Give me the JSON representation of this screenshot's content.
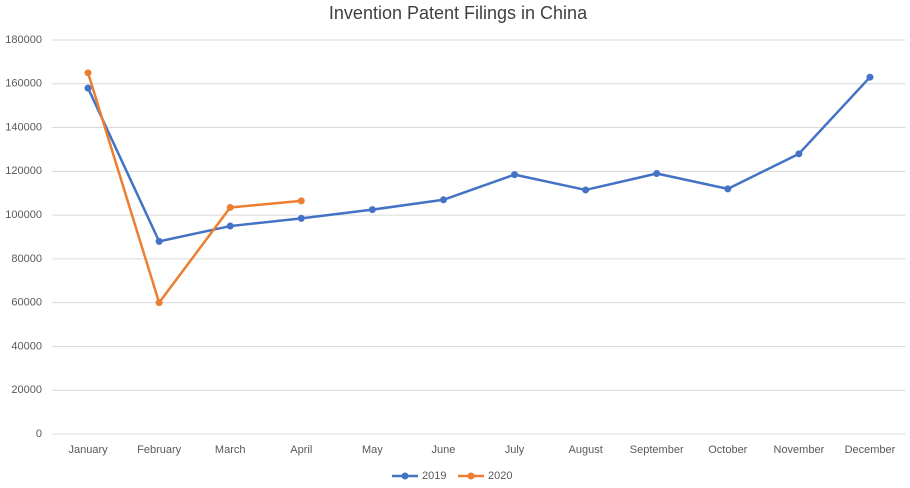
{
  "chart_data": {
    "type": "line",
    "title": "Invention Patent Filings in China",
    "categories": [
      "January",
      "February",
      "March",
      "April",
      "May",
      "June",
      "July",
      "August",
      "September",
      "October",
      "November",
      "December"
    ],
    "series": [
      {
        "name": "2019",
        "color": "#4472c4",
        "values": [
          158000,
          88000,
          95000,
          98500,
          102500,
          107000,
          118500,
          111500,
          119000,
          112000,
          128000,
          163000
        ]
      },
      {
        "name": "2020",
        "color": "#ed7d31",
        "values": [
          165000,
          60000,
          103500,
          106500,
          null,
          null,
          null,
          null,
          null,
          null,
          null,
          null
        ]
      }
    ],
    "ylim": [
      0,
      180000
    ],
    "yticks": [
      0,
      20000,
      40000,
      60000,
      80000,
      100000,
      120000,
      140000,
      160000,
      180000
    ],
    "grid": true,
    "legend": "bottom"
  }
}
